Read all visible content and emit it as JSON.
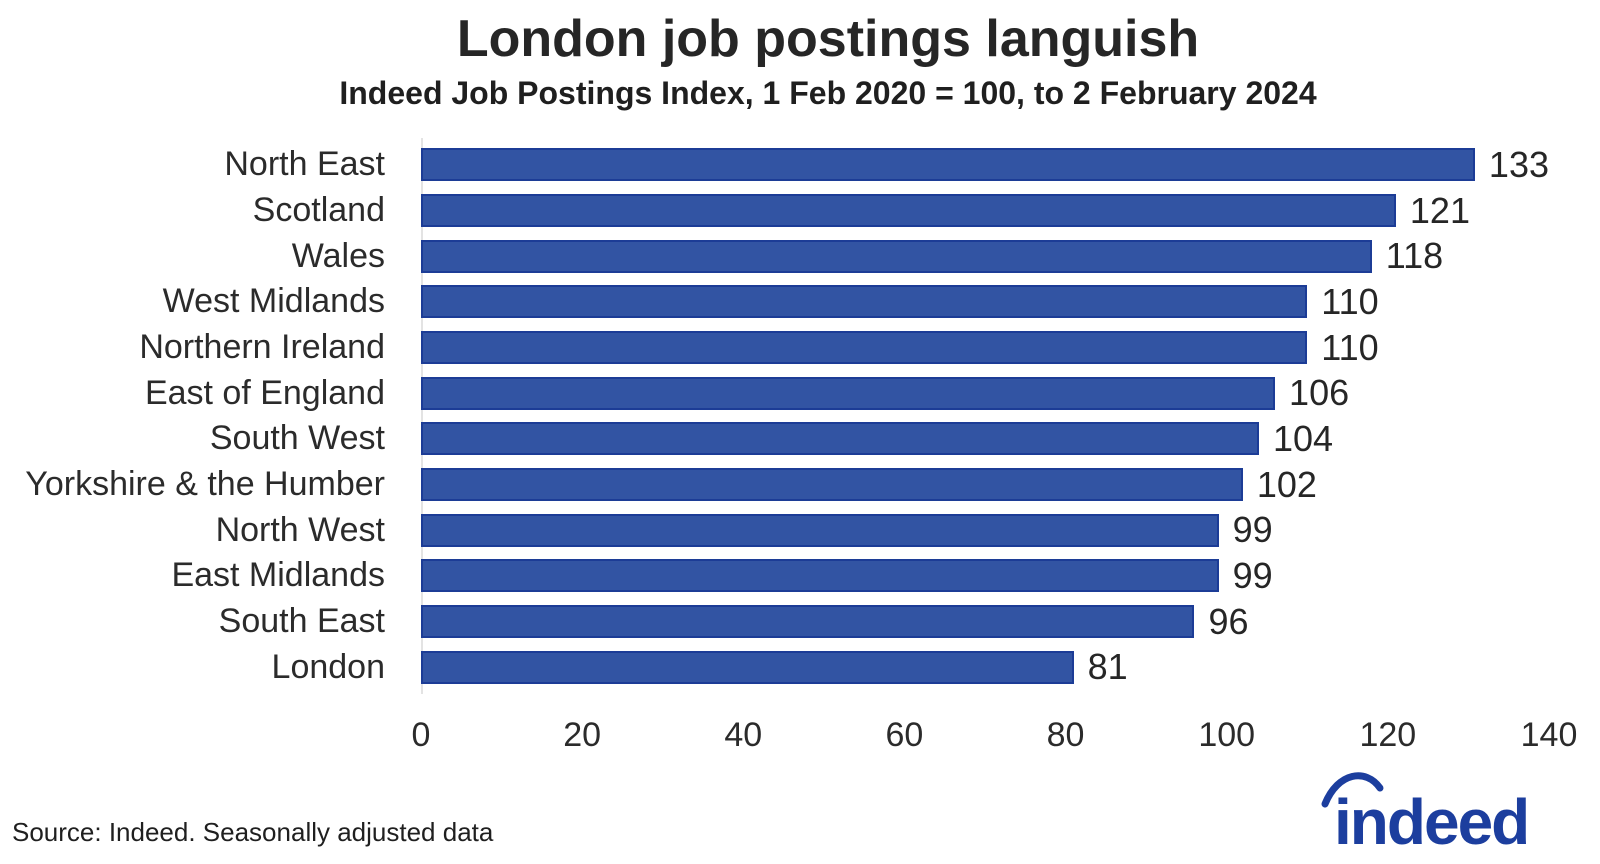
{
  "header": {
    "title": "London job postings languish",
    "subtitle": "Indeed Job Postings Index, 1 Feb 2020 = 100, to 2 February 2024"
  },
  "chart_data": {
    "type": "bar",
    "orientation": "horizontal",
    "title": "London job postings languish",
    "subtitle": "Indeed Job Postings Index, 1 Feb 2020 = 100, to 2 February 2024",
    "categories": [
      "North East",
      "Scotland",
      "Wales",
      "West Midlands",
      "Northern Ireland",
      "East of England",
      "South West",
      "Yorkshire & the Humber",
      "North West",
      "East Midlands",
      "South East",
      "London"
    ],
    "values": [
      133,
      121,
      118,
      110,
      110,
      106,
      104,
      102,
      99,
      99,
      96,
      81
    ],
    "xlabel": "",
    "ylabel": "",
    "xlim": [
      0,
      140
    ],
    "xticks": [
      0,
      20,
      40,
      60,
      80,
      100,
      120,
      140
    ],
    "grid": false,
    "value_labels": true,
    "legend": "none",
    "bar_color": "#3254A3",
    "bar_border_color": "#1C3C96"
  },
  "footer": {
    "source": "Source: Indeed. Seasonally adjusted data",
    "logo_text": "indeed",
    "logo_color": "#1C3E9E"
  }
}
